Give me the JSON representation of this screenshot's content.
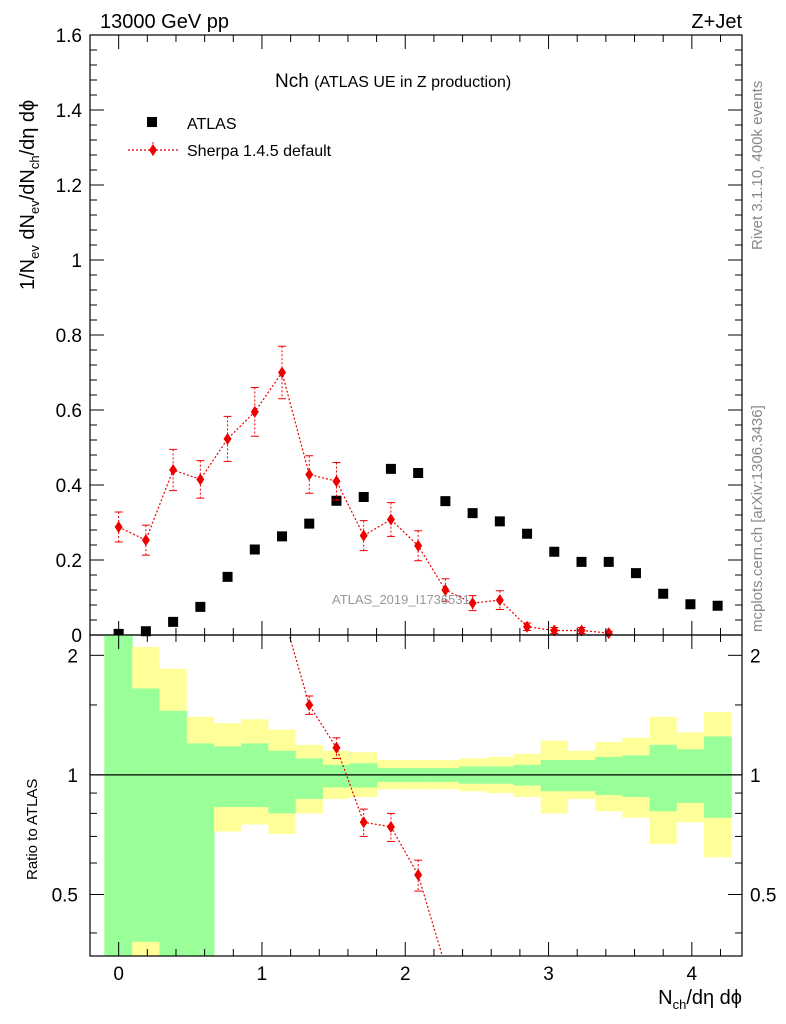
{
  "header": {
    "energy_label": "13000 GeV pp",
    "process_label": "Z+Jet"
  },
  "side_text": {
    "rivet_info": "Rivet 3.1.10,  400k events",
    "source": "mcplots.cern.ch [arXiv:1306.3436]"
  },
  "chart_data": [
    {
      "type": "scatter",
      "title": "Nch",
      "subtitle": "(ATLAS UE in Z production)",
      "ylabel": "1/N_ev dN_ev/dN_ch/dη dϕ",
      "xlabel": "N_ch/dη dϕ",
      "watermark": "ATLAS_2019_I1736531",
      "xlim": [
        -0.2,
        4.35
      ],
      "ylim": [
        0,
        1.6
      ],
      "yticks": [
        0,
        0.2,
        0.4,
        0.6,
        0.8,
        1,
        1.2,
        1.4,
        1.6
      ],
      "ytick_labels": [
        "0",
        "0.2",
        "0.4",
        "0.6",
        "0.8",
        "1",
        "1.2",
        "1.4",
        "1.6"
      ],
      "legend_position": "top-left",
      "series": [
        {
          "name": "ATLAS",
          "marker": "square",
          "color": "#000000",
          "x": [
            0.0,
            0.19,
            0.38,
            0.57,
            0.76,
            0.95,
            1.14,
            1.33,
            1.52,
            1.71,
            1.9,
            2.09,
            2.28,
            2.47,
            2.66,
            2.85,
            3.04,
            3.23,
            3.42,
            3.61,
            3.8,
            3.99,
            4.18
          ],
          "y": [
            0.003,
            0.01,
            0.035,
            0.075,
            0.155,
            0.228,
            0.263,
            0.297,
            0.358,
            0.368,
            0.443,
            0.432,
            0.357,
            0.325,
            0.303,
            0.27,
            0.222,
            0.195,
            0.195,
            0.165,
            0.11,
            0.082,
            0.078
          ]
        },
        {
          "name": "Sherpa 1.4.5 default",
          "marker": "diamond",
          "color": "#ee0000",
          "x": [
            0.0,
            0.19,
            0.38,
            0.57,
            0.76,
            0.95,
            1.14,
            1.33,
            1.52,
            1.71,
            1.9,
            2.09,
            2.28,
            2.47,
            2.66,
            2.85,
            3.04,
            3.23,
            3.42
          ],
          "y": [
            0.288,
            0.253,
            0.44,
            0.415,
            0.523,
            0.595,
            0.7,
            0.428,
            0.41,
            0.265,
            0.308,
            0.238,
            0.12,
            0.085,
            0.093,
            0.022,
            0.012,
            0.012,
            0.005
          ],
          "err": [
            0.04,
            0.04,
            0.055,
            0.05,
            0.06,
            0.065,
            0.07,
            0.05,
            0.05,
            0.04,
            0.045,
            0.04,
            0.03,
            0.02,
            0.025,
            0.01,
            0.008,
            0.008,
            0.005
          ]
        }
      ]
    },
    {
      "type": "area",
      "ylabel": "Ratio to ATLAS",
      "xlabel": "N_ch/dη dϕ",
      "xlim": [
        -0.2,
        4.35
      ],
      "ylim": [
        0.35,
        2.25
      ],
      "yticks": [
        0.5,
        1,
        2
      ],
      "ytick_labels": [
        "0.5",
        "1",
        "2"
      ],
      "xticks": [
        0,
        1,
        2,
        3,
        4
      ],
      "xtick_labels": [
        "0",
        "1",
        "2",
        "3",
        "4"
      ],
      "reference_line": 1,
      "bands": {
        "bin_edges": [
          -0.1,
          0.095,
          0.285,
          0.475,
          0.665,
          0.855,
          1.045,
          1.235,
          1.425,
          1.615,
          1.805,
          1.995,
          2.185,
          2.375,
          2.565,
          2.755,
          2.945,
          3.135,
          3.325,
          3.515,
          3.705,
          3.895,
          4.085,
          4.275
        ],
        "green_up": [
          2.3,
          1.65,
          1.45,
          1.2,
          1.18,
          1.2,
          1.15,
          1.1,
          1.06,
          1.07,
          1.04,
          1.04,
          1.04,
          1.05,
          1.05,
          1.06,
          1.09,
          1.09,
          1.11,
          1.12,
          1.19,
          1.16,
          1.25
        ],
        "green_down": [
          0.3,
          0.38,
          0.3,
          0.3,
          0.83,
          0.83,
          0.8,
          0.87,
          0.93,
          0.93,
          0.96,
          0.96,
          0.96,
          0.95,
          0.95,
          0.94,
          0.91,
          0.91,
          0.89,
          0.88,
          0.81,
          0.85,
          0.78
        ],
        "yellow_up": [
          2.3,
          2.1,
          1.85,
          1.4,
          1.35,
          1.38,
          1.3,
          1.19,
          1.15,
          1.14,
          1.09,
          1.09,
          1.09,
          1.1,
          1.11,
          1.13,
          1.22,
          1.15,
          1.21,
          1.24,
          1.4,
          1.28,
          1.44
        ],
        "yellow_down": [
          0.3,
          0.3,
          0.3,
          0.3,
          0.72,
          0.75,
          0.71,
          0.8,
          0.87,
          0.88,
          0.92,
          0.92,
          0.92,
          0.91,
          0.9,
          0.88,
          0.8,
          0.87,
          0.81,
          0.78,
          0.67,
          0.76,
          0.62
        ]
      },
      "series": [
        {
          "name": "Sherpa 1.4.5 default",
          "color": "#ee0000",
          "x": [
            1.14,
            1.33,
            1.52,
            1.71,
            1.9,
            2.09,
            2.28
          ],
          "y": [
            2.6,
            1.5,
            1.17,
            0.76,
            0.74,
            0.56,
            0.33
          ],
          "err": [
            0.2,
            0.08,
            0.07,
            0.06,
            0.06,
            0.05,
            0.04
          ],
          "drawn_points": [
            false,
            true,
            true,
            true,
            true,
            true,
            false
          ]
        }
      ]
    }
  ]
}
